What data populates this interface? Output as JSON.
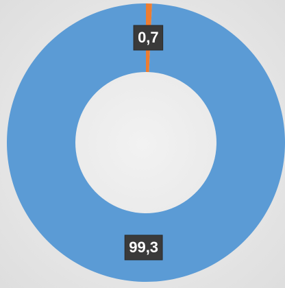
{
  "chart_data": {
    "type": "donut",
    "values": [
      0.7,
      99.3
    ],
    "value_labels": [
      "0,7",
      "99,3"
    ],
    "colors": [
      "#ed7d31",
      "#5b9bd5"
    ]
  }
}
